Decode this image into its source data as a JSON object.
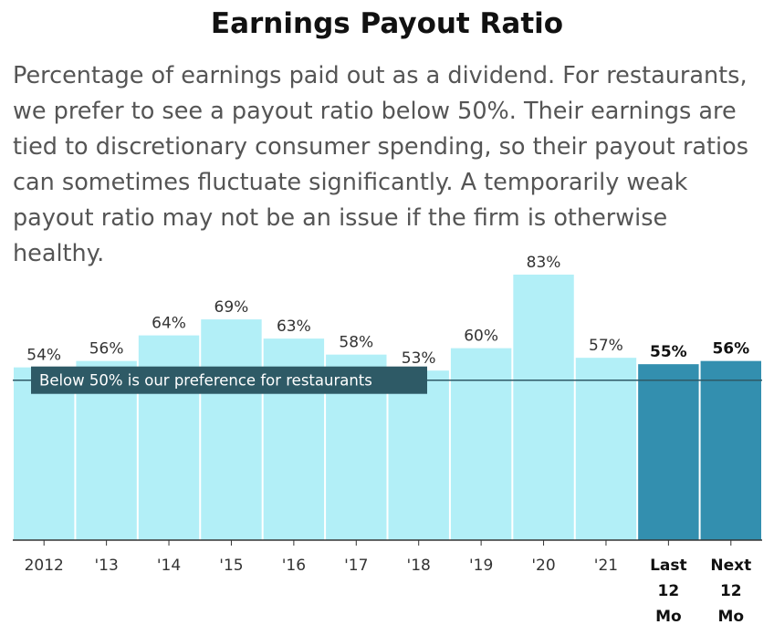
{
  "header": {
    "title": "Earnings Payout Ratio",
    "subtitle": "Percentage of earnings paid out as a dividend. For restaurants, we prefer to see a payout ratio below 50%. Their earnings are tied to discretionary consumer spending, so their payout ratios can sometimes fluctuate significantly. A temporarily weak payout ratio may not be an issue if the firm is otherwise healthy."
  },
  "chart_data": {
    "type": "bar",
    "categories": [
      "2012",
      "'13",
      "'14",
      "'15",
      "'16",
      "'17",
      "'18",
      "'19",
      "'20",
      "'21",
      "Last 12 Mo",
      "Next 12 Mo"
    ],
    "values": [
      54,
      56,
      64,
      69,
      63,
      58,
      53,
      60,
      83,
      57,
      55,
      56
    ],
    "value_labels": [
      "54%",
      "56%",
      "64%",
      "69%",
      "63%",
      "58%",
      "53%",
      "60%",
      "83%",
      "57%",
      "55%",
      "56%"
    ],
    "highlighted": [
      false,
      false,
      false,
      false,
      false,
      false,
      false,
      false,
      false,
      false,
      true,
      true
    ],
    "colors": {
      "historical": "#b2eff7",
      "projected": "#338faf",
      "reference": "#2e5a66",
      "axis": "#333333"
    },
    "reference_line": {
      "value": 50,
      "label": "Below 50% is our preference for restaurants"
    },
    "ylim": [
      0,
      83
    ],
    "grid": false
  }
}
